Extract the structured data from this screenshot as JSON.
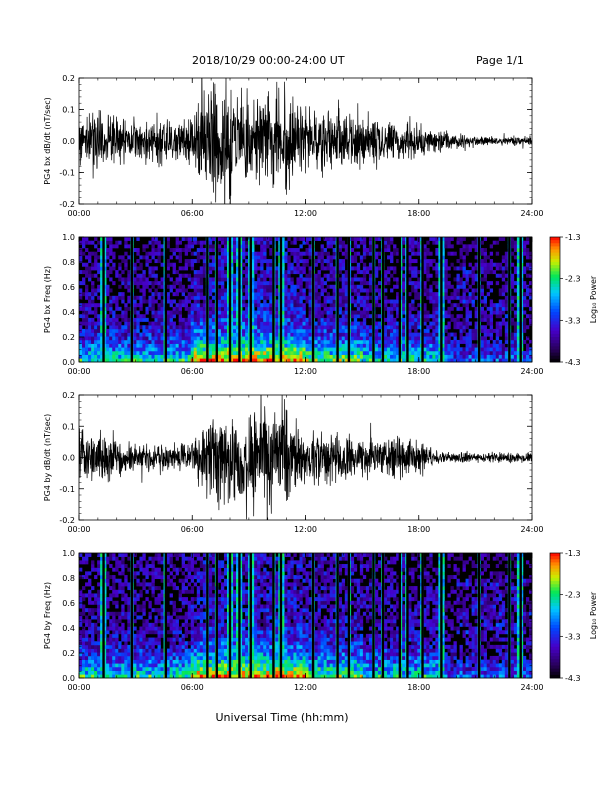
{
  "header": {
    "title": "2018/10/29  00:00-24:00 UT",
    "page": "Page 1/1"
  },
  "xlabel": "Universal Time (hh:mm)",
  "x_ticks": [
    "00:00",
    "06:00",
    "12:00",
    "18:00",
    "24:00"
  ],
  "colorbar": {
    "label": "Log₁₀ Power",
    "ticks": [
      "-1.3",
      "-2.3",
      "-3.3",
      "-4.3"
    ],
    "range": [
      -4.3,
      -1.3
    ]
  },
  "chart_data": [
    {
      "type": "line",
      "ylabel": "PG4 bx dB/dt (nT/sec)",
      "ylim": [
        -0.2,
        0.2
      ],
      "y_ticks": [
        "0.2",
        "0.1",
        "0.0",
        "-0.1",
        "-0.2"
      ],
      "xlim_hours": [
        0,
        24
      ],
      "amplitude_envelope": {
        "hours": [
          0,
          1,
          2,
          3,
          4,
          5,
          6,
          6.5,
          7,
          8,
          9,
          10,
          11,
          12,
          13,
          14,
          15,
          16,
          17,
          18,
          19,
          20,
          21,
          22,
          23,
          24
        ],
        "amp": [
          0.13,
          0.12,
          0.1,
          0.09,
          0.09,
          0.1,
          0.11,
          0.22,
          0.22,
          0.22,
          0.2,
          0.2,
          0.2,
          0.14,
          0.13,
          0.12,
          0.1,
          0.09,
          0.08,
          0.07,
          0.05,
          0.03,
          0.02,
          0.02,
          0.02,
          0.02
        ]
      }
    },
    {
      "type": "heatmap",
      "ylabel": "PG4 bx Freq (Hz)",
      "ylim": [
        0.0,
        1.0
      ],
      "y_ticks": [
        "1.0",
        "0.8",
        "0.6",
        "0.4",
        "0.2",
        "0.0"
      ],
      "xlim_hours": [
        0,
        24
      ],
      "zlim_log10_power": [
        -4.3,
        -1.3
      ],
      "broadband_bursts_hours": [
        1.3,
        2.8,
        4.6,
        6.8,
        7.3,
        8.0,
        8.5,
        9.1,
        10.3,
        10.7,
        12.4,
        13.7,
        14.3,
        15.6,
        16.1,
        17.0,
        17.4,
        18.2,
        19.2,
        21.2,
        22.8,
        23.4
      ]
    },
    {
      "type": "line",
      "ylabel": "PG4 by dB/dt (nT/sec)",
      "ylim": [
        -0.2,
        0.2
      ],
      "y_ticks": [
        "0.2",
        "0.1",
        "0.0",
        "-0.1",
        "-0.2"
      ],
      "xlim_hours": [
        0,
        24
      ],
      "amplitude_envelope": {
        "hours": [
          0,
          1,
          2,
          3,
          4,
          5,
          6,
          6.5,
          7,
          8,
          9,
          10,
          11,
          12,
          13,
          14,
          15,
          16,
          17,
          18,
          19,
          20,
          21,
          22,
          23,
          24
        ],
        "amp": [
          0.12,
          0.11,
          0.07,
          0.06,
          0.05,
          0.05,
          0.06,
          0.15,
          0.2,
          0.2,
          0.22,
          0.22,
          0.22,
          0.1,
          0.1,
          0.09,
          0.08,
          0.08,
          0.09,
          0.07,
          0.03,
          0.02,
          0.02,
          0.02,
          0.02,
          0.02
        ]
      }
    },
    {
      "type": "heatmap",
      "ylabel": "PG4 by Freq (Hz)",
      "ylim": [
        0.0,
        1.0
      ],
      "y_ticks": [
        "1.0",
        "0.8",
        "0.6",
        "0.4",
        "0.2",
        "0.0"
      ],
      "xlim_hours": [
        0,
        24
      ],
      "zlim_log10_power": [
        -4.3,
        -1.3
      ],
      "broadband_bursts_hours": [
        1.3,
        2.8,
        4.6,
        6.8,
        7.3,
        8.0,
        8.5,
        9.1,
        10.3,
        10.7,
        12.4,
        13.7,
        14.3,
        15.6,
        16.1,
        17.0,
        17.4,
        18.2,
        19.2,
        21.2,
        22.8,
        23.4
      ]
    }
  ]
}
